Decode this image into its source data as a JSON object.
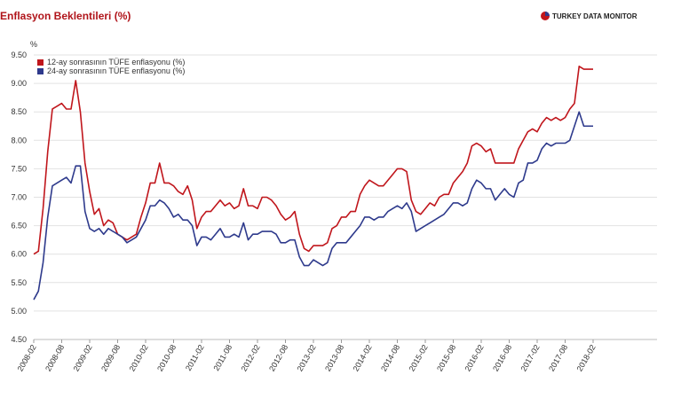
{
  "chart_data": {
    "type": "line",
    "title": "Enflasyon Beklentileri (%)",
    "source": "TURKEY DATA MONITOR",
    "y_label": "%",
    "ylim": [
      4.5,
      9.5
    ],
    "yticks": [
      {
        "value": 4.5,
        "label": "4.50"
      },
      {
        "value": 5,
        "label": "5.00"
      },
      {
        "value": 5.5,
        "label": "5.50"
      },
      {
        "value": 6,
        "label": "6.00"
      },
      {
        "value": 6.5,
        "label": "6.50"
      },
      {
        "value": 7,
        "label": "7.00"
      },
      {
        "value": 7.5,
        "label": "7.50"
      },
      {
        "value": 8,
        "label": "8.00"
      },
      {
        "value": 8.5,
        "label": "8.50"
      },
      {
        "value": 9,
        "label": "9.00"
      },
      {
        "value": 9.5,
        "label": "9.50"
      }
    ],
    "grid": true,
    "legend": "upper left",
    "categories": [
      "2008-02",
      null,
      null,
      null,
      null,
      null,
      "2008-08",
      null,
      null,
      null,
      null,
      null,
      "2009-02",
      null,
      null,
      null,
      null,
      null,
      "2009-08",
      null,
      null,
      null,
      null,
      null,
      "2010-02",
      null,
      null,
      null,
      null,
      null,
      "2010-08",
      null,
      null,
      null,
      null,
      null,
      "2011-02",
      null,
      null,
      null,
      null,
      null,
      "2011-08",
      null,
      null,
      null,
      null,
      null,
      "2012-02",
      null,
      null,
      null,
      null,
      null,
      "2012-08",
      null,
      null,
      null,
      null,
      null,
      "2013-02",
      null,
      null,
      null,
      null,
      null,
      "2013-08",
      null,
      null,
      null,
      null,
      null,
      "2014-02",
      null,
      null,
      null,
      null,
      null,
      "2014-08",
      null,
      null,
      null,
      null,
      null,
      "2015-02",
      null,
      null,
      null,
      null,
      null,
      "2015-08",
      null,
      null,
      null,
      null,
      null,
      "2016-02",
      null,
      null,
      null,
      null,
      null,
      "2016-08",
      null,
      null,
      null,
      null,
      null,
      "2017-02",
      null,
      null,
      null,
      null,
      null,
      "2017-08",
      null,
      null,
      null,
      null,
      null,
      "2018-02"
    ],
    "series": [
      {
        "name": "12-ay sonrasının TÜFE enflasyonu (%)",
        "color": "#c0161c",
        "values": [
          6.0,
          6.05,
          6.8,
          7.8,
          8.55,
          8.6,
          8.65,
          8.55,
          8.55,
          9.05,
          8.5,
          7.6,
          7.1,
          6.7,
          6.8,
          6.5,
          6.6,
          6.55,
          6.35,
          6.3,
          6.25,
          6.3,
          6.35,
          6.65,
          6.9,
          7.25,
          7.25,
          7.6,
          7.25,
          7.25,
          7.2,
          7.1,
          7.05,
          7.2,
          6.95,
          6.45,
          6.65,
          6.75,
          6.75,
          6.85,
          6.95,
          6.85,
          6.9,
          6.8,
          6.85,
          7.15,
          6.85,
          6.85,
          6.8,
          7.0,
          7.0,
          6.95,
          6.85,
          6.7,
          6.6,
          6.65,
          6.75,
          6.35,
          6.1,
          6.05,
          6.15,
          6.15,
          6.15,
          6.2,
          6.45,
          6.5,
          6.65,
          6.65,
          6.75,
          6.75,
          7.05,
          7.2,
          7.3,
          7.25,
          7.2,
          7.2,
          7.3,
          7.4,
          7.5,
          7.5,
          7.45,
          6.95,
          6.75,
          6.7,
          6.8,
          6.9,
          6.85,
          7.0,
          7.05,
          7.05,
          7.25,
          7.35,
          7.45,
          7.6,
          7.9,
          7.95,
          7.9,
          7.8,
          7.85,
          7.6,
          7.6,
          7.6,
          7.6,
          7.6,
          7.85,
          8.0,
          8.15,
          8.2,
          8.15,
          8.3,
          8.4,
          8.35,
          8.4,
          8.35,
          8.4,
          8.55,
          8.65,
          9.3,
          9.25,
          9.25,
          9.25
        ]
      },
      {
        "name": "24-ay sonrasının TÜFE enflasyonu (%)",
        "color": "#2e3a8c",
        "values": [
          5.2,
          5.35,
          5.85,
          6.65,
          7.2,
          7.25,
          7.3,
          7.35,
          7.25,
          7.55,
          7.55,
          6.75,
          6.45,
          6.4,
          6.45,
          6.35,
          6.45,
          6.4,
          6.35,
          6.3,
          6.2,
          6.25,
          6.3,
          6.45,
          6.6,
          6.85,
          6.85,
          6.95,
          6.9,
          6.8,
          6.65,
          6.7,
          6.6,
          6.6,
          6.5,
          6.15,
          6.3,
          6.3,
          6.25,
          6.35,
          6.45,
          6.3,
          6.3,
          6.35,
          6.3,
          6.55,
          6.25,
          6.35,
          6.35,
          6.4,
          6.4,
          6.4,
          6.35,
          6.2,
          6.2,
          6.25,
          6.25,
          5.95,
          5.8,
          5.8,
          5.9,
          5.85,
          5.8,
          5.85,
          6.1,
          6.2,
          6.2,
          6.2,
          6.3,
          6.4,
          6.5,
          6.65,
          6.65,
          6.6,
          6.65,
          6.65,
          6.75,
          6.8,
          6.85,
          6.8,
          6.9,
          6.75,
          6.4,
          6.45,
          6.5,
          6.55,
          6.6,
          6.65,
          6.7,
          6.8,
          6.9,
          6.9,
          6.85,
          6.9,
          7.15,
          7.3,
          7.25,
          7.15,
          7.15,
          6.95,
          7.05,
          7.15,
          7.05,
          7.0,
          7.25,
          7.3,
          7.6,
          7.6,
          7.65,
          7.85,
          7.95,
          7.9,
          7.95,
          7.95,
          7.95,
          8.0,
          8.25,
          8.5,
          8.25,
          8.25,
          8.25
        ]
      }
    ]
  }
}
